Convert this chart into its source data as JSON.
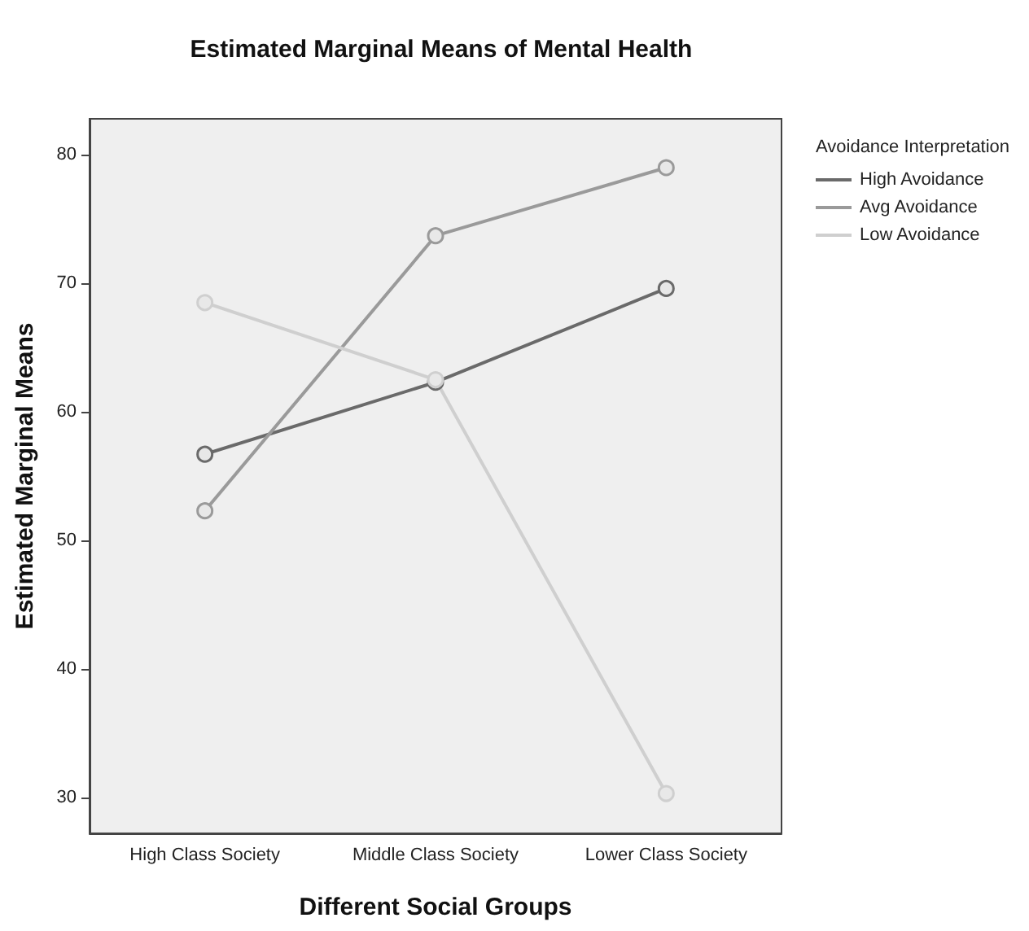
{
  "chart_data": {
    "type": "line",
    "title": "Estimated Marginal Means of Mental Health",
    "xlabel": "Different Social Groups",
    "ylabel": "Estimated Marginal Means",
    "legend_title": "Avoidance Interpretation",
    "categories": [
      "High Class Society",
      "Middle Class Society",
      "Lower Class Society"
    ],
    "series": [
      {
        "name": "High Avoidance",
        "color": "#6a6a6a",
        "values": [
          56.7,
          62.3,
          69.6
        ]
      },
      {
        "name": "Avg Avoidance",
        "color": "#9a9a9a",
        "values": [
          52.3,
          73.7,
          79.0
        ]
      },
      {
        "name": "Low Avoidance",
        "color": "#cfcfcf",
        "values": [
          68.5,
          62.5,
          30.3
        ]
      }
    ],
    "ylim": [
      27.2,
      82.8
    ],
    "yticks": [
      30,
      40,
      50,
      60,
      70,
      80
    ],
    "grid": false,
    "legend": "top right",
    "marker": "circle",
    "line_style": "solid"
  }
}
